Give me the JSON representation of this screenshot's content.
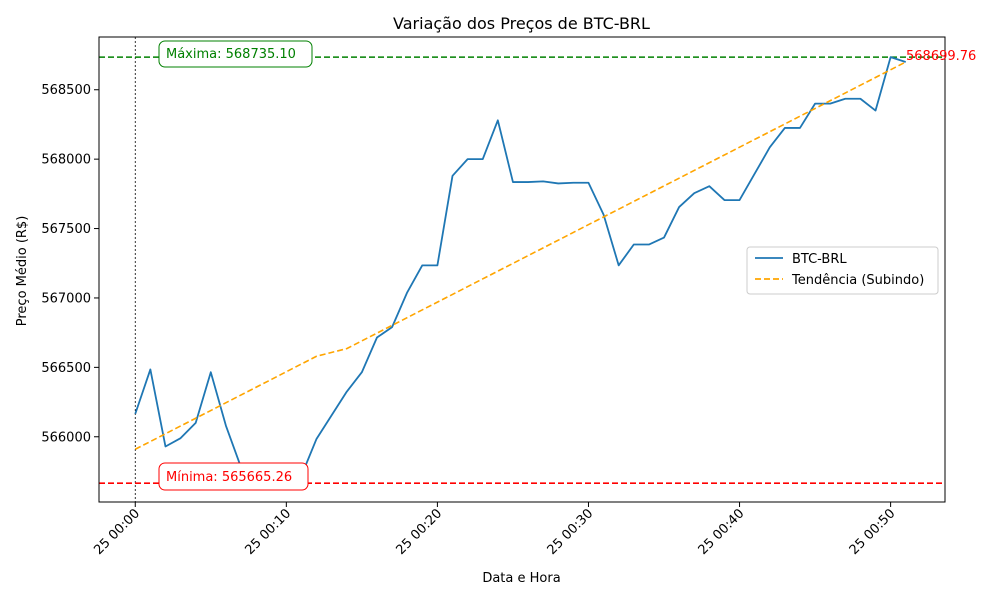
{
  "chart_data": {
    "type": "line",
    "title": "Variação dos Preços de BTC-BRL",
    "xlabel": "Data e Hora",
    "ylabel": "Preço Médio (R$)",
    "xlim": [
      -2.4,
      53.6
    ],
    "ylim": [
      565530,
      568880
    ],
    "x_ticks": [
      0,
      10,
      20,
      30,
      40,
      50
    ],
    "x_tick_labels": [
      "25 00:00",
      "25 00:10",
      "25 00:20",
      "25 00:30",
      "25 00:40",
      "25 00:50"
    ],
    "y_ticks": [
      566000,
      566500,
      567000,
      567500,
      568000,
      568500
    ],
    "y_tick_labels": [
      "566000",
      "566500",
      "567000",
      "567500",
      "568000",
      "568500"
    ],
    "grid": false,
    "legend_position": "center-right",
    "series": [
      {
        "name": "BTC-BRL",
        "color": "#1f77b4",
        "style": "solid",
        "x": [
          0,
          1,
          2,
          3,
          4,
          5,
          6,
          7,
          8,
          9,
          10,
          11,
          12,
          13,
          14,
          15,
          16,
          17,
          18,
          19,
          20,
          21,
          22,
          23,
          24,
          25,
          26,
          27,
          28,
          29,
          30,
          31,
          32,
          33,
          34,
          35,
          36,
          37,
          38,
          39,
          40,
          41,
          42,
          43,
          44,
          45,
          46,
          47,
          48,
          49,
          50,
          51
        ],
        "values": [
          566165,
          566485,
          565930,
          565990,
          566100,
          566465,
          566080,
          565780,
          565680,
          565670,
          565670,
          565720,
          565985,
          566155,
          566325,
          566465,
          566715,
          566790,
          567040,
          567235,
          567235,
          567880,
          568000,
          568000,
          568280,
          567835,
          567835,
          567840,
          567825,
          567830,
          567830,
          567600,
          567235,
          567385,
          567385,
          567435,
          567655,
          567755,
          567805,
          567705,
          567705,
          567895,
          568085,
          568225,
          568225,
          568400,
          568400,
          568435,
          568435,
          568350,
          568735,
          568700
        ]
      },
      {
        "name": "Tendência (Subindo)",
        "color": "#ffa500",
        "style": "dashed",
        "x": [
          0,
          12,
          14,
          51
        ],
        "values": [
          565910,
          566580,
          566635,
          568700
        ]
      }
    ],
    "reference_lines": [
      {
        "value": 568735.1,
        "color": "#008000"
      },
      {
        "value": 565665.26,
        "color": "#ff0000"
      }
    ],
    "vertical_line_x": 0,
    "annotations": {
      "max_label": "Máxima: 568735.10",
      "min_label": "Mínima: 565665.26",
      "last_label": "568699.76"
    }
  }
}
